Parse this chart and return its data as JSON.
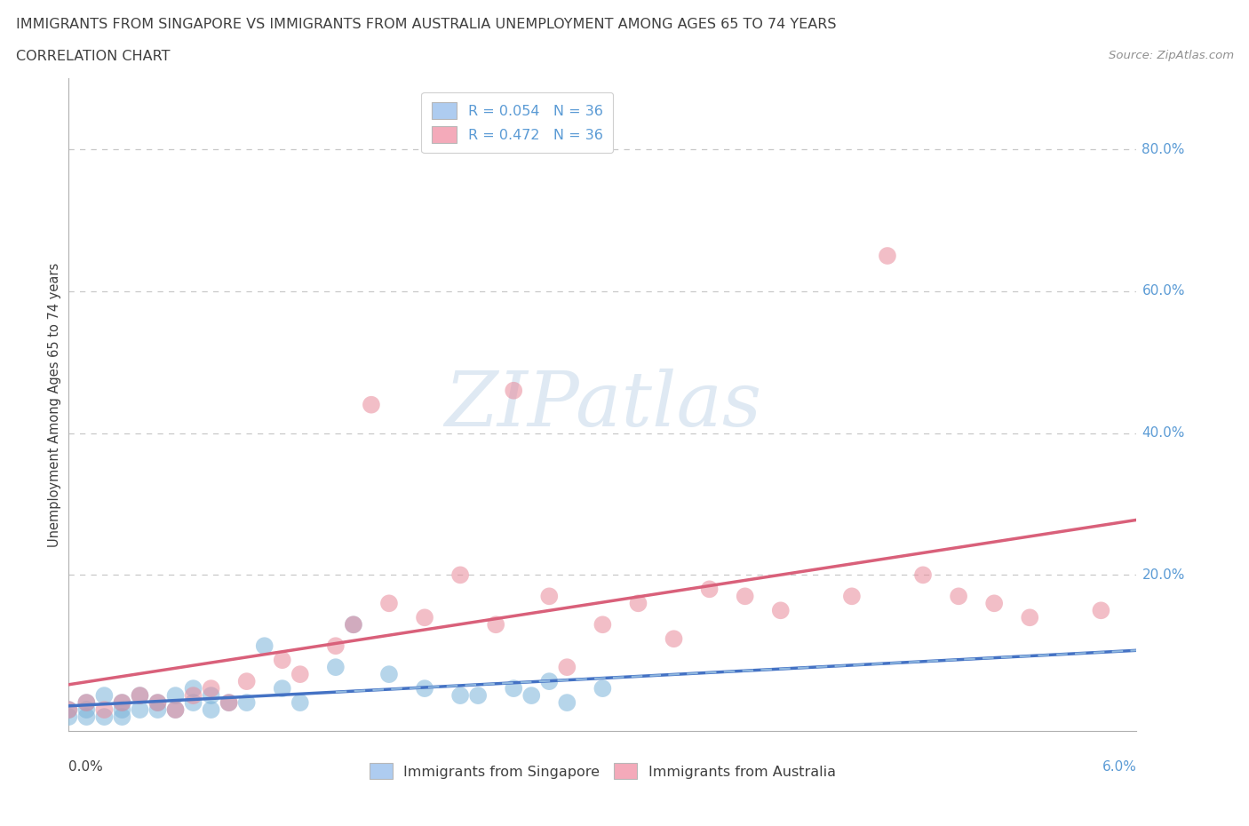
{
  "title_line1": "IMMIGRANTS FROM SINGAPORE VS IMMIGRANTS FROM AUSTRALIA UNEMPLOYMENT AMONG AGES 65 TO 74 YEARS",
  "title_line2": "CORRELATION CHART",
  "source": "Source: ZipAtlas.com",
  "ylabel": "Unemployment Among Ages 65 to 74 years",
  "watermark": "ZIPatlas",
  "sg_R": 0.054,
  "sg_N": 36,
  "au_R": 0.472,
  "au_N": 36,
  "xlim": [
    0.0,
    0.06
  ],
  "ylim": [
    -0.02,
    0.9
  ],
  "ytick_vals": [
    0.0,
    0.2,
    0.4,
    0.6,
    0.8
  ],
  "ytick_labels": [
    "",
    "20.0%",
    "40.0%",
    "60.0%",
    "80.0%"
  ],
  "grid_color": "#c8c8c8",
  "sg_dot_color": "#7ab3d9",
  "au_dot_color": "#e88a9a",
  "sg_line_color": "#4472c4",
  "au_line_color": "#d9607a",
  "sg_legend_color": "#aeccf0",
  "au_legend_color": "#f4aaba",
  "background_color": "#ffffff",
  "title_color": "#404040",
  "ytick_color": "#5b9bd5",
  "sg_x": [
    0.0,
    0.0,
    0.001,
    0.001,
    0.001,
    0.002,
    0.002,
    0.003,
    0.003,
    0.003,
    0.004,
    0.004,
    0.005,
    0.005,
    0.006,
    0.006,
    0.007,
    0.007,
    0.008,
    0.008,
    0.009,
    0.01,
    0.011,
    0.012,
    0.013,
    0.015,
    0.016,
    0.018,
    0.02,
    0.022,
    0.023,
    0.025,
    0.026,
    0.027,
    0.028,
    0.03
  ],
  "sg_y": [
    0.0,
    0.01,
    0.0,
    0.01,
    0.02,
    0.0,
    0.03,
    0.0,
    0.01,
    0.02,
    0.01,
    0.03,
    0.01,
    0.02,
    0.01,
    0.03,
    0.02,
    0.04,
    0.01,
    0.03,
    0.02,
    0.02,
    0.1,
    0.04,
    0.02,
    0.07,
    0.13,
    0.06,
    0.04,
    0.03,
    0.03,
    0.04,
    0.03,
    0.05,
    0.02,
    0.04
  ],
  "au_x": [
    0.0,
    0.001,
    0.002,
    0.003,
    0.004,
    0.005,
    0.006,
    0.007,
    0.008,
    0.009,
    0.01,
    0.012,
    0.013,
    0.015,
    0.016,
    0.017,
    0.018,
    0.02,
    0.022,
    0.024,
    0.025,
    0.027,
    0.028,
    0.03,
    0.032,
    0.034,
    0.036,
    0.038,
    0.04,
    0.044,
    0.046,
    0.048,
    0.05,
    0.052,
    0.054,
    0.058
  ],
  "au_y": [
    0.01,
    0.02,
    0.01,
    0.02,
    0.03,
    0.02,
    0.01,
    0.03,
    0.04,
    0.02,
    0.05,
    0.08,
    0.06,
    0.1,
    0.13,
    0.44,
    0.16,
    0.14,
    0.2,
    0.13,
    0.46,
    0.17,
    0.07,
    0.13,
    0.16,
    0.11,
    0.18,
    0.17,
    0.15,
    0.17,
    0.65,
    0.2,
    0.17,
    0.16,
    0.14,
    0.15
  ]
}
